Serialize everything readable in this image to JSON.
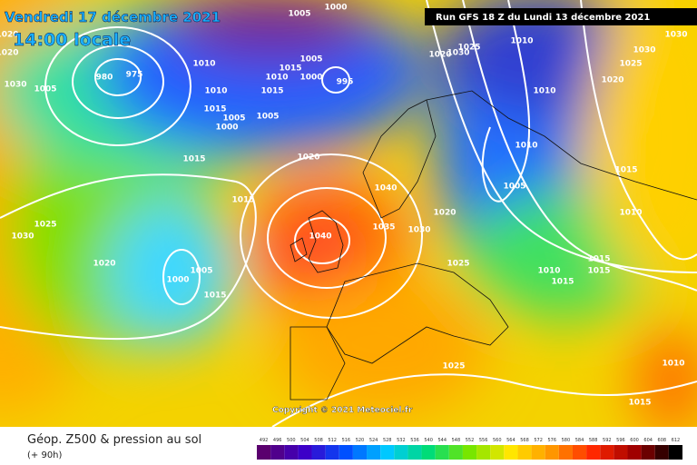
{
  "header": {
    "date": "Vendredi 17 décembre 2021",
    "time": "14:00 locale",
    "run": "Run GFS 18 Z du Lundi 13 décembre 2021"
  },
  "footer": {
    "title": "Géop. Z500 & pression au sol",
    "lead": "(+ 90h)",
    "copyright": "Copyright © 2021 Meteociel.fr"
  },
  "legend": {
    "values": [
      492,
      496,
      500,
      504,
      508,
      512,
      516,
      520,
      524,
      528,
      532,
      536,
      540,
      544,
      548,
      552,
      556,
      560,
      564,
      568,
      572,
      576,
      580,
      584,
      588,
      592,
      596,
      600,
      604,
      608,
      612
    ]
  },
  "isobar_labels": [
    1005,
    1000,
    980,
    975,
    1010,
    1005,
    1015,
    1010,
    1000,
    995,
    1010,
    1015,
    1015,
    1005,
    1000,
    1005,
    1005,
    1015,
    1020,
    1015,
    1025,
    1030,
    1020,
    1000,
    1005,
    1015,
    1040,
    1040,
    1035,
    1030,
    1020,
    1025,
    1010,
    1015,
    1015,
    1015,
    1010,
    1015,
    1005,
    1010,
    1010,
    1010,
    1025,
    1030,
    1020,
    1030,
    1025,
    1020,
    1030,
    1025,
    1010,
    1015,
    1020,
    1020,
    1030
  ]
}
